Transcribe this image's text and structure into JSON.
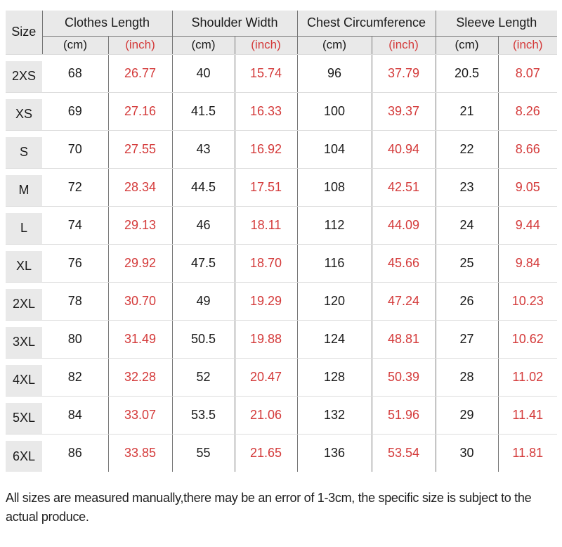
{
  "colors": {
    "header_background": "#e9e9e9",
    "grid_dark": "#777777",
    "grid_light": "#dcdcdc",
    "inch_red": "#d43a3a",
    "text_black": "#1a1a1a"
  },
  "table": {
    "size_header": "Size",
    "unit_cm": "(cm)",
    "unit_inch": "(inch)",
    "groups": [
      "Clothes Length",
      "Shoulder Width",
      "Chest Circumference",
      "Sleeve Length"
    ],
    "rows": [
      {
        "size": "2XS",
        "clothes_cm": "68",
        "clothes_inch": "26.77",
        "shoulder_cm": "40",
        "shoulder_inch": "15.74",
        "chest_cm": "96",
        "chest_inch": "37.79",
        "sleeve_cm": "20.5",
        "sleeve_inch": "8.07"
      },
      {
        "size": "XS",
        "clothes_cm": "69",
        "clothes_inch": "27.16",
        "shoulder_cm": "41.5",
        "shoulder_inch": "16.33",
        "chest_cm": "100",
        "chest_inch": "39.37",
        "sleeve_cm": "21",
        "sleeve_inch": "8.26"
      },
      {
        "size": "S",
        "clothes_cm": "70",
        "clothes_inch": "27.55",
        "shoulder_cm": "43",
        "shoulder_inch": "16.92",
        "chest_cm": "104",
        "chest_inch": "40.94",
        "sleeve_cm": "22",
        "sleeve_inch": "8.66"
      },
      {
        "size": "M",
        "clothes_cm": "72",
        "clothes_inch": "28.34",
        "shoulder_cm": "44.5",
        "shoulder_inch": "17.51",
        "chest_cm": "108",
        "chest_inch": "42.51",
        "sleeve_cm": "23",
        "sleeve_inch": "9.05"
      },
      {
        "size": "L",
        "clothes_cm": "74",
        "clothes_inch": "29.13",
        "shoulder_cm": "46",
        "shoulder_inch": "18.11",
        "chest_cm": "112",
        "chest_inch": "44.09",
        "sleeve_cm": "24",
        "sleeve_inch": "9.44"
      },
      {
        "size": "XL",
        "clothes_cm": "76",
        "clothes_inch": "29.92",
        "shoulder_cm": "47.5",
        "shoulder_inch": "18.70",
        "chest_cm": "116",
        "chest_inch": "45.66",
        "sleeve_cm": "25",
        "sleeve_inch": "9.84"
      },
      {
        "size": "2XL",
        "clothes_cm": "78",
        "clothes_inch": "30.70",
        "shoulder_cm": "49",
        "shoulder_inch": "19.29",
        "chest_cm": "120",
        "chest_inch": "47.24",
        "sleeve_cm": "26",
        "sleeve_inch": "10.23"
      },
      {
        "size": "3XL",
        "clothes_cm": "80",
        "clothes_inch": "31.49",
        "shoulder_cm": "50.5",
        "shoulder_inch": "19.88",
        "chest_cm": "124",
        "chest_inch": "48.81",
        "sleeve_cm": "27",
        "sleeve_inch": "10.62"
      },
      {
        "size": "4XL",
        "clothes_cm": "82",
        "clothes_inch": "32.28",
        "shoulder_cm": "52",
        "shoulder_inch": "20.47",
        "chest_cm": "128",
        "chest_inch": "50.39",
        "sleeve_cm": "28",
        "sleeve_inch": "11.02"
      },
      {
        "size": "5XL",
        "clothes_cm": "84",
        "clothes_inch": "33.07",
        "shoulder_cm": "53.5",
        "shoulder_inch": "21.06",
        "chest_cm": "132",
        "chest_inch": "51.96",
        "sleeve_cm": "29",
        "sleeve_inch": "11.41"
      },
      {
        "size": "6XL",
        "clothes_cm": "86",
        "clothes_inch": "33.85",
        "shoulder_cm": "55",
        "shoulder_inch": "21.65",
        "chest_cm": "136",
        "chest_inch": "53.54",
        "sleeve_cm": "30",
        "sleeve_inch": "11.81"
      }
    ]
  },
  "footer": {
    "note": "All sizes are measured manually,there may be an error of 1-3cm, the specific size is subject to the actual produce."
  },
  "chart_data": {
    "type": "table",
    "title": "Garment size chart",
    "columns": [
      "Size",
      "Clothes Length (cm)",
      "Clothes Length (inch)",
      "Shoulder Width (cm)",
      "Shoulder Width (inch)",
      "Chest Circumference (cm)",
      "Chest Circumference (inch)",
      "Sleeve Length (cm)",
      "Sleeve Length (inch)"
    ],
    "rows": [
      [
        "2XS",
        68,
        26.77,
        40,
        15.74,
        96,
        37.79,
        20.5,
        8.07
      ],
      [
        "XS",
        69,
        27.16,
        41.5,
        16.33,
        100,
        39.37,
        21,
        8.26
      ],
      [
        "S",
        70,
        27.55,
        43,
        16.92,
        104,
        40.94,
        22,
        8.66
      ],
      [
        "M",
        72,
        28.34,
        44.5,
        17.51,
        108,
        42.51,
        23,
        9.05
      ],
      [
        "L",
        74,
        29.13,
        46,
        18.11,
        112,
        44.09,
        24,
        9.44
      ],
      [
        "XL",
        76,
        29.92,
        47.5,
        18.7,
        116,
        45.66,
        25,
        9.84
      ],
      [
        "2XL",
        78,
        30.7,
        49,
        19.29,
        120,
        47.24,
        26,
        10.23
      ],
      [
        "3XL",
        80,
        31.49,
        50.5,
        19.88,
        124,
        48.81,
        27,
        10.62
      ],
      [
        "4XL",
        82,
        32.28,
        52,
        20.47,
        128,
        50.39,
        28,
        11.02
      ],
      [
        "5XL",
        84,
        33.07,
        53.5,
        21.06,
        132,
        51.96,
        29,
        11.41
      ],
      [
        "6XL",
        86,
        33.85,
        55,
        21.65,
        136,
        53.54,
        30,
        11.81
      ]
    ],
    "notes": "All sizes are measured manually,there may be an error of 1-3cm, the specific size is subject to the actual produce."
  }
}
